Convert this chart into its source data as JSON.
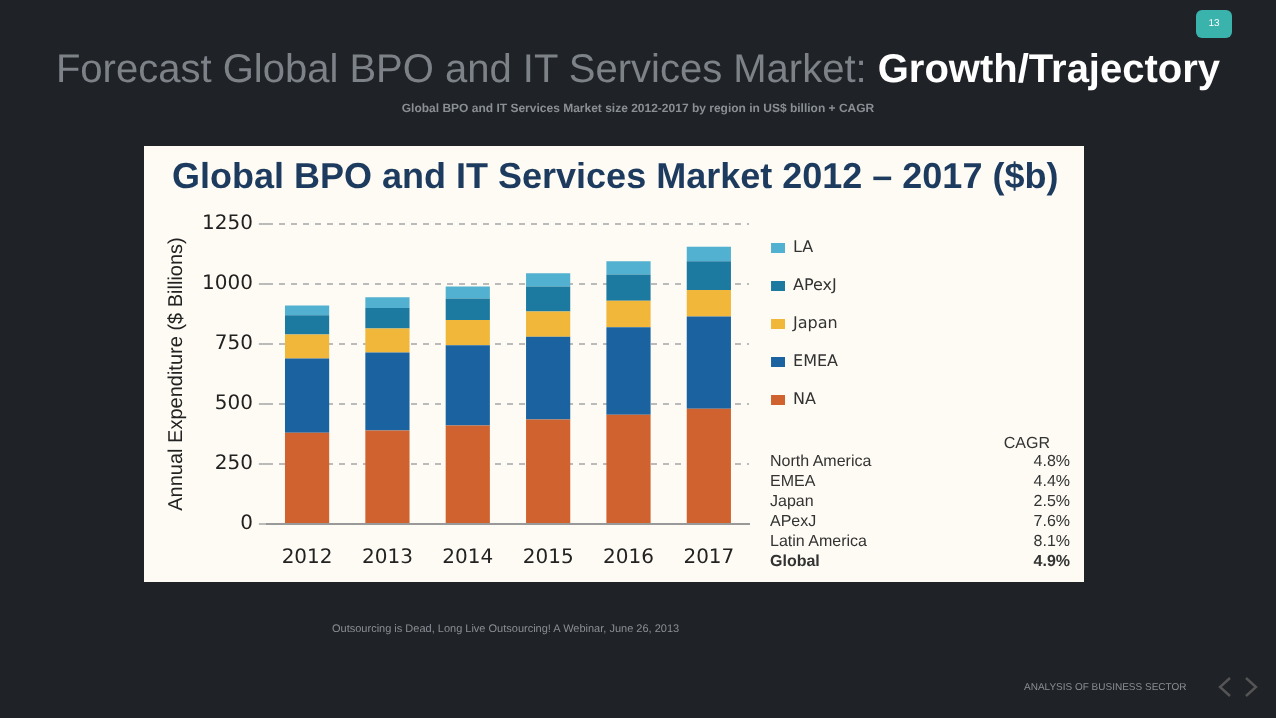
{
  "chart_data": {
    "type": "bar",
    "title": "Forecast Global BPO and IT Services Market: Growth/Trajectory",
    "subtitle": "Global BPO and IT Services Market size 2012-2017 by region in US$ billion + CAGR",
    "ylabel": "Annual Expenditure ($ Billions)",
    "categories": [
      "2012",
      "2013",
      "2014",
      "2015",
      "2016",
      "2017"
    ],
    "stacked": true,
    "series": [
      {
        "name": "NA",
        "color": "#d0622f",
        "values": [
          380,
          390,
          410,
          435,
          455,
          480
        ]
      },
      {
        "name": "EMEA",
        "color": "#1a63a0",
        "values": [
          310,
          325,
          335,
          345,
          365,
          385
        ]
      },
      {
        "name": "Japan",
        "color": "#f0b73a",
        "values": [
          100,
          100,
          105,
          105,
          110,
          110
        ]
      },
      {
        "name": "APexJ",
        "color": "#1c7aa0",
        "values": [
          80,
          85,
          90,
          105,
          110,
          120
        ]
      },
      {
        "name": "LA",
        "color": "#52b1d0",
        "values": [
          40,
          45,
          50,
          55,
          55,
          60
        ]
      }
    ],
    "ylim": [
      0,
      1250
    ],
    "yticks": [
      0,
      250,
      500,
      750,
      1000,
      1250
    ],
    "grid": "y",
    "legend": "right",
    "annotations": [
      "Global BPO and IT Services Market 2012 – 2017 ($b)",
      "CAGR",
      "North America 4.8%",
      "EMEA 4.4%",
      "Japan 2.5%",
      "APexJ 7.6%",
      "Latin America 8.1%",
      "Global 4.9%",
      "Outsourcing is Dead, Long Live Outsourcing! A Webinar, June 26, 2013",
      "ANALYSIS OF BUSINESS SECTOR",
      "13"
    ]
  }
}
